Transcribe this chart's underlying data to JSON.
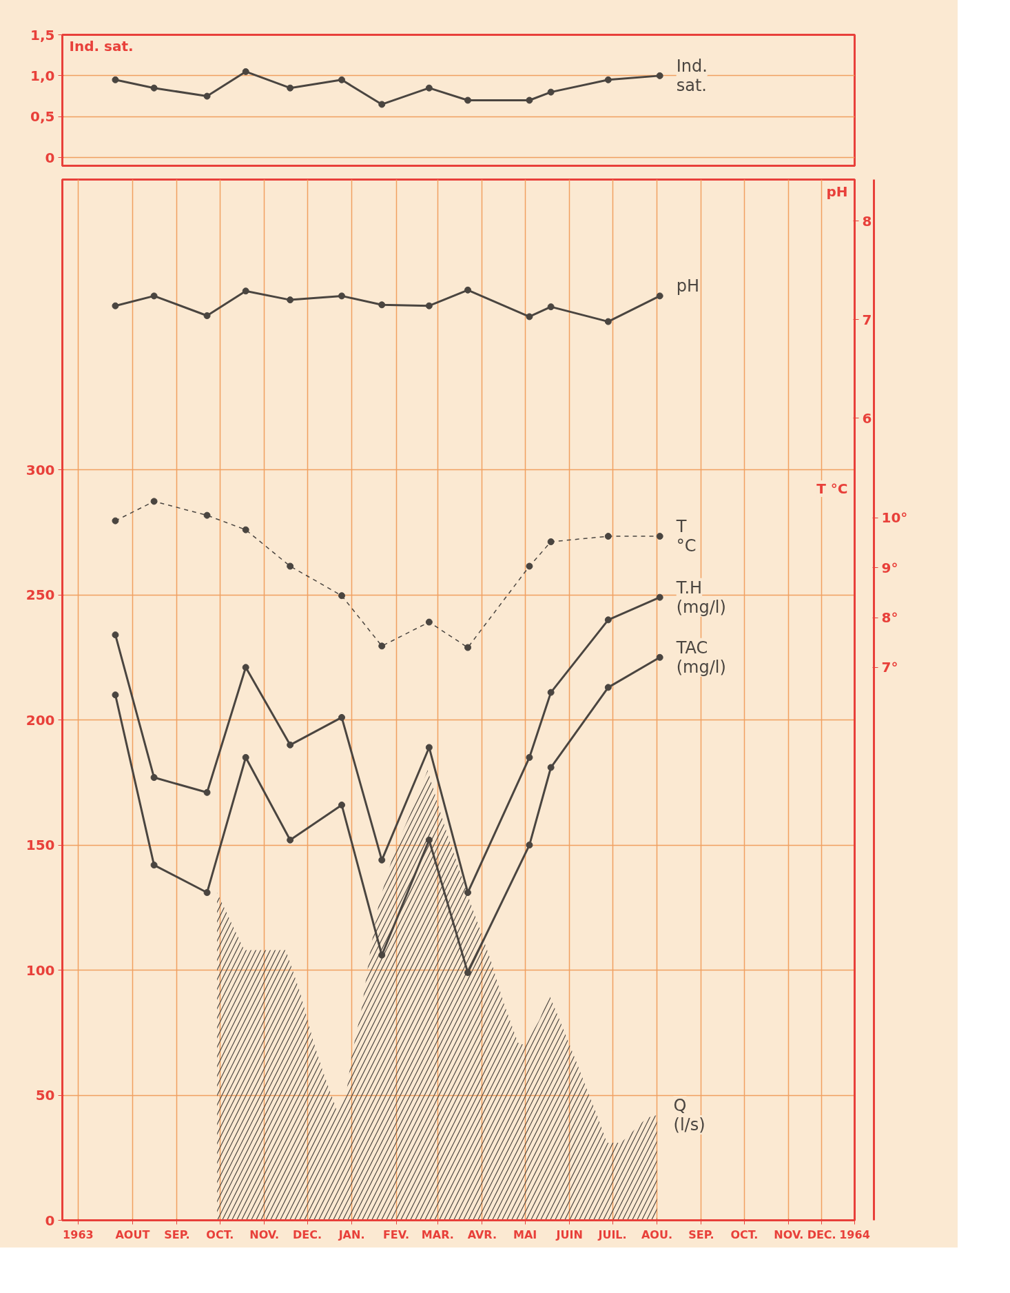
{
  "chart_data": [
    {
      "type": "line",
      "ylabel": "Ind. sat.",
      "tick_labels": "y",
      "x": [
        "1963-08-03",
        "1963-08-30",
        "1963-10-06",
        "1963-11-02",
        "1963-12-03",
        "1964-01-08",
        "1964-02-05",
        "1964-03-09",
        "1964-04-05",
        "1964-05-18",
        "1964-06-02",
        "1964-07-12",
        "1964-08-17"
      ],
      "xlim": [
        "1963-06-27",
        "1964-12-31"
      ],
      "ylim": [
        -0.1,
        1.5
      ],
      "yticks": [
        0,
        {
          "value": 0.5,
          "label": "0,5"
        },
        {
          "value": 1,
          "label": "1,0"
        },
        {
          "value": 1.5,
          "label": "1,5"
        }
      ],
      "grid": true,
      "marker": "circle",
      "series": [
        {
          "name": "Ind. sat.",
          "color": "#4a4540",
          "values": [
            0.95,
            0.85,
            0.75,
            1.05,
            0.85,
            0.95,
            0.65,
            0.85,
            0.7,
            0.7,
            0.8,
            0.95,
            1.0
          ]
        }
      ]
    },
    {
      "type": "line",
      "x": [
        "1963-08-03",
        "1963-08-30",
        "1963-10-06",
        "1963-11-02",
        "1963-12-03",
        "1964-01-08",
        "1964-02-05",
        "1964-03-09",
        "1964-04-05",
        "1964-05-18",
        "1964-06-02",
        "1964-07-12",
        "1964-08-17"
      ],
      "xlim": [
        "1963-06-27",
        "1964-12-31"
      ],
      "xticks": [
        {
          "value": "1963-07-08",
          "label": "1963"
        },
        {
          "value": "1963-08-15",
          "label": "AOUT"
        },
        {
          "value": "1963-09-15",
          "label": "SEP."
        },
        {
          "value": "1963-10-15",
          "label": "OCT."
        },
        {
          "value": "1963-11-15",
          "label": "NOV."
        },
        {
          "value": "1963-12-15",
          "label": "DEC."
        },
        {
          "value": "1964-01-15",
          "label": "JAN."
        },
        {
          "value": "1964-02-15",
          "label": "FEV."
        },
        {
          "value": "1964-03-15",
          "label": "MAR."
        },
        {
          "value": "1964-04-15",
          "label": "AVR."
        },
        {
          "value": "1964-05-15",
          "label": "MAI"
        },
        {
          "value": "1964-06-15",
          "label": "JUIN"
        },
        {
          "value": "1964-07-15",
          "label": "JUIL."
        },
        {
          "value": "1964-08-15",
          "label": "AOU."
        },
        {
          "value": "1964-09-15",
          "label": "SEP."
        },
        {
          "value": "1964-10-15",
          "label": "OCT."
        },
        {
          "value": "1964-11-15",
          "label": "NOV."
        },
        {
          "value": "1964-12-08",
          "label": "DEC."
        },
        {
          "value": "1964-12-31",
          "label": "1964"
        }
      ],
      "ylim": [
        0,
        416
      ],
      "yticks": [
        0,
        50,
        100,
        150,
        200,
        250,
        300
      ],
      "y2label": "pH",
      "y2lim": [
        -2.13,
        8.42
      ],
      "y2ticks": [
        6,
        7,
        8
      ],
      "y3label": "T °C",
      "y3lim": [
        -4.08,
        16.78
      ],
      "y3ticks": [
        {
          "value": 7,
          "label": "7°"
        },
        {
          "value": 8,
          "label": "8°"
        },
        {
          "value": 9,
          "label": "9°"
        },
        {
          "value": 10,
          "label": "10°"
        }
      ],
      "grid": true,
      "marker": "circle",
      "series": [
        {
          "name": "pH",
          "color": "#4a4540",
          "axis": "y2",
          "values": [
            7.14,
            7.24,
            7.04,
            7.29,
            7.2,
            7.24,
            7.15,
            7.14,
            7.3,
            7.03,
            7.13,
            6.98,
            7.24
          ]
        },
        {
          "name": "T °C",
          "color": "#4a4540",
          "axis": "y3",
          "line_style": "dashed",
          "values": [
            9.94,
            10.33,
            10.05,
            9.76,
            9.03,
            8.44,
            7.43,
            7.91,
            7.4,
            9.03,
            9.52,
            9.63,
            9.63
          ]
        },
        {
          "name": "T.H (mg/l)",
          "color": "#4a4540",
          "values": [
            234,
            177,
            171,
            221,
            190,
            201,
            144,
            189,
            131,
            185,
            211,
            240,
            249
          ]
        },
        {
          "name": "TAC (mg/l)",
          "color": "#4a4540",
          "values": [
            210,
            142,
            131,
            185,
            152,
            166,
            106,
            152,
            99,
            150,
            181,
            213,
            225
          ]
        },
        {
          "name": "Q (l/s)",
          "type": "area",
          "color": "#4a4540",
          "marker": "none",
          "x": [
            "1963-10-13",
            "1963-11-01",
            "1963-11-30",
            "1963-12-10",
            "1963-12-19",
            "1963-12-25",
            "1964-01-02",
            "1964-01-05",
            "1964-01-11",
            "1964-01-15",
            "1964-01-22",
            "1964-01-28",
            "1964-02-03",
            "1964-02-14",
            "1964-02-26",
            "1964-03-08",
            "1964-03-19",
            "1964-04-05",
            "1964-04-21",
            "1964-04-30",
            "1964-05-10",
            "1964-05-15",
            "1964-05-25",
            "1964-06-01",
            "1964-06-11",
            "1964-06-20",
            "1964-06-30",
            "1964-07-05",
            "1964-07-11",
            "1964-07-21",
            "1964-08-08",
            "1964-08-15"
          ],
          "values": [
            131,
            108,
            108,
            91,
            72,
            61,
            48,
            43,
            50,
            66,
            85,
            108,
            127,
            148,
            164,
            180,
            159,
            130,
            104,
            87,
            71,
            70,
            80,
            90,
            76,
            63,
            48,
            41,
            31,
            31,
            41,
            42
          ]
        }
      ]
    }
  ]
}
